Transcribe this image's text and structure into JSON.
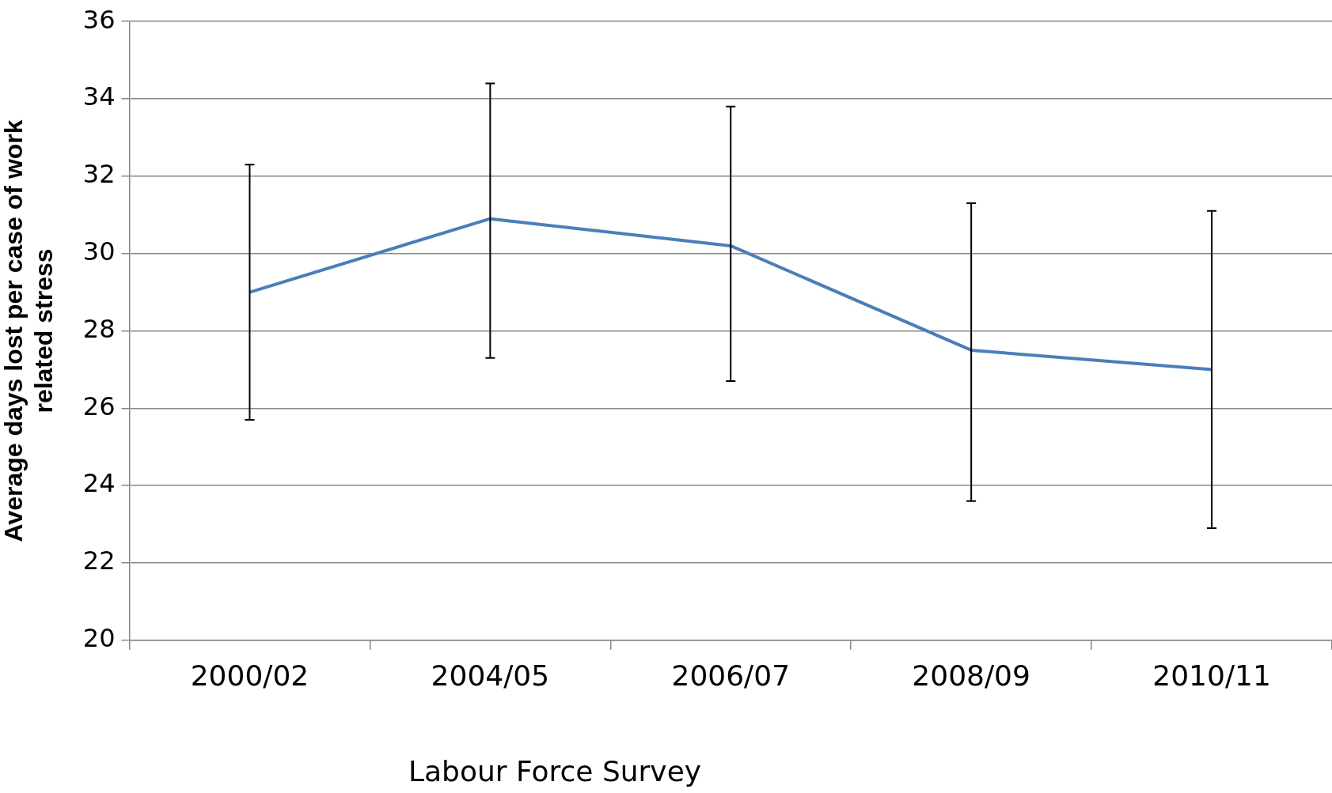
{
  "chart_data": {
    "type": "line",
    "xlabel": "Labour Force Survey",
    "ylabel": "Average days lost per case of work related stress",
    "categories": [
      "2000/02",
      "2004/05",
      "2006/07",
      "2008/09",
      "2010/11"
    ],
    "series": [
      {
        "color": "#4a7ebb",
        "values": [
          29.0,
          30.9,
          30.2,
          27.5,
          27.0
        ],
        "errors": [
          [
            25.7,
            32.3
          ],
          [
            27.3,
            34.4
          ],
          [
            26.7,
            33.8
          ],
          [
            23.6,
            31.3
          ],
          [
            22.9,
            31.1
          ]
        ]
      }
    ],
    "ylim": [
      20,
      36
    ],
    "yticks": [
      20,
      22,
      24,
      26,
      28,
      30,
      32,
      34,
      36
    ],
    "grid": "y",
    "legend": false,
    "marker": "none",
    "line_style": "solid"
  }
}
